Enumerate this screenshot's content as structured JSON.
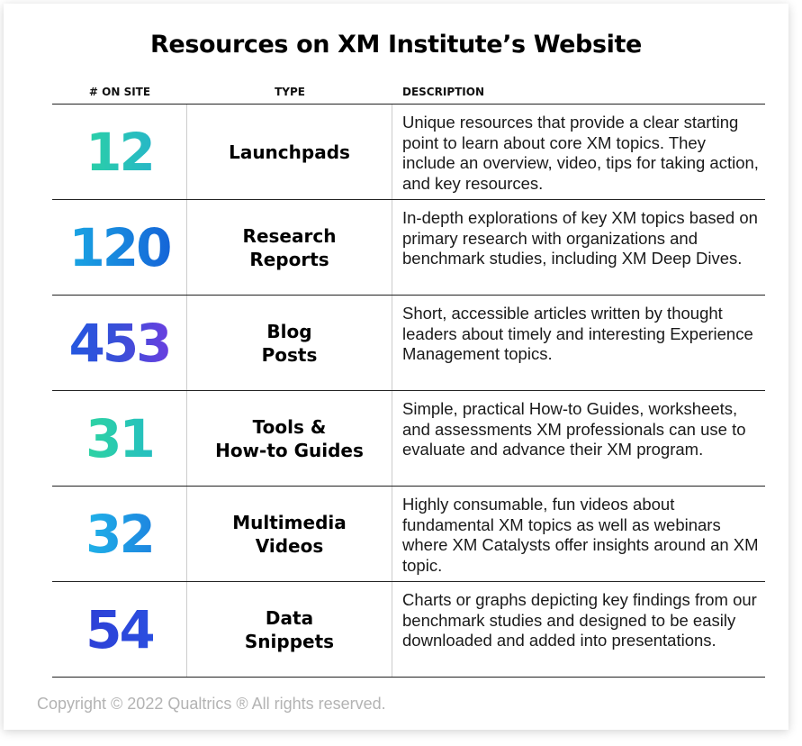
{
  "title": "Resources on XM Institute’s Website",
  "columns": {
    "count": "# ON SITE",
    "type": "TYPE",
    "description": "DESCRIPTION"
  },
  "rows": [
    {
      "count": "12",
      "type": "Launchpads",
      "description": "Unique resources that provide a clear starting point to learn about core XM topics. They include an overview, video, tips for taking action, and key resources.",
      "gradient": [
        "#2ad0a6",
        "#27b7c7"
      ]
    },
    {
      "count": "120",
      "type": "Research\nReports",
      "description": "In-depth explorations of key XM topics based on primary research with organizations and benchmark studies, including XM Deep Dives.",
      "gradient": [
        "#1aa6e3",
        "#1565d8"
      ]
    },
    {
      "count": "453",
      "type": "Blog\nPosts",
      "description": "Short, accessible articles written by thought leaders about timely and interesting Experience Management topics.",
      "gradient": [
        "#2357e0",
        "#6a3fe0"
      ]
    },
    {
      "count": "31",
      "type": "Tools &\nHow-to Guides",
      "description": "Simple, practical How-to Guides, worksheets, and assessments XM professionals can use to evaluate and advance their XM program.",
      "gradient": [
        "#2ed3a2",
        "#25bfc0"
      ]
    },
    {
      "count": "32",
      "type": "Multimedia\nVideos",
      "description": "Highly consumable, fun videos about fundamental XM topics as well as webinars where XM Catalysts offer insights around an XM topic.",
      "gradient": [
        "#1fb2e8",
        "#1e86e0"
      ]
    },
    {
      "count": "54",
      "type": "Data\nSnippets",
      "description": "Charts or graphs depicting key findings from our benchmark studies and designed to be easily downloaded and added into presentations.",
      "gradient": [
        "#2d3fd6",
        "#2b4fe0"
      ]
    }
  ],
  "footer": "Copyright © 2022 Qualtrics ® All rights reserved."
}
